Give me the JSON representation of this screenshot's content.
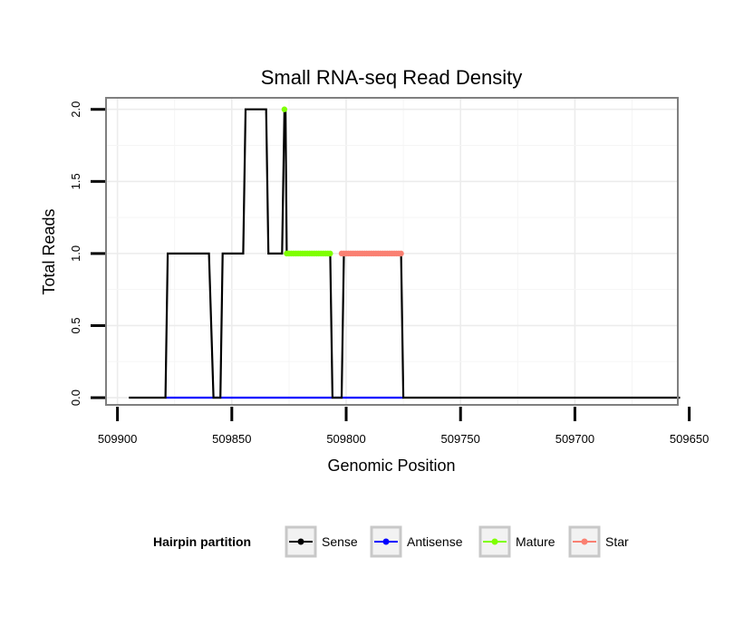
{
  "chart_data": {
    "type": "line",
    "title": "Small RNA-seq Read Density",
    "xlabel": "Genomic Position",
    "ylabel": "Total Reads",
    "x_reversed": true,
    "xlim": [
      509095,
      509345
    ],
    "ylim": [
      -0.05,
      2.08
    ],
    "x_ticks": [
      509100,
      509150,
      509200,
      509250,
      509300,
      509350
    ],
    "x_tick_labels": [
      "509900",
      "509850",
      "509800",
      "509750",
      "509700",
      "509650"
    ],
    "y_ticks": [
      0,
      0.5,
      1,
      1.5,
      2
    ],
    "y_tick_labels": [
      "0.0",
      "0.5",
      "1.0",
      "1.5",
      "2.0"
    ],
    "grid": true,
    "legend": {
      "title": "Hairpin partition",
      "position": "bottom",
      "entries": [
        {
          "name": "Sense",
          "color": "#000000"
        },
        {
          "name": "Antisense",
          "color": "#0000ff"
        },
        {
          "name": "Mature",
          "color": "#7fff00"
        },
        {
          "name": "Star",
          "color": "#fa8072"
        }
      ]
    },
    "series": [
      {
        "name": "Sense",
        "color": "#000000",
        "style": "line",
        "x": [
          509105,
          509121,
          509122,
          509140,
          509142,
          509145,
          509146,
          509155,
          509156,
          509165,
          509166,
          509172,
          509173,
          509173.5,
          509174,
          509193,
          509194,
          509198,
          509199,
          509224,
          509225,
          509346
        ],
        "y": [
          0,
          0,
          1,
          1,
          0,
          0,
          1,
          1,
          2,
          2,
          1,
          1,
          2,
          2,
          1,
          1,
          0,
          0,
          1,
          1,
          0,
          0
        ]
      },
      {
        "name": "Antisense",
        "color": "#0000ff",
        "style": "line",
        "x": [
          509121,
          509225
        ],
        "y": [
          0,
          0
        ]
      },
      {
        "name": "Mature",
        "color": "#7fff00",
        "style": "points",
        "x": [
          509173,
          509174,
          509175,
          509176,
          509177,
          509178,
          509179,
          509180,
          509181,
          509182,
          509183,
          509184,
          509185,
          509186,
          509187,
          509188,
          509189,
          509190,
          509191,
          509192,
          509193
        ],
        "y": [
          2,
          1,
          1,
          1,
          1,
          1,
          1,
          1,
          1,
          1,
          1,
          1,
          1,
          1,
          1,
          1,
          1,
          1,
          1,
          1,
          1
        ]
      },
      {
        "name": "Star",
        "color": "#fa8072",
        "style": "points",
        "x": [
          509198,
          509199,
          509200,
          509201,
          509202,
          509203,
          509204,
          509205,
          509206,
          509207,
          509208,
          509209,
          509210,
          509211,
          509212,
          509213,
          509214,
          509215,
          509216,
          509217,
          509218,
          509219,
          509220,
          509221,
          509222,
          509223,
          509224
        ],
        "y": [
          1,
          1,
          1,
          1,
          1,
          1,
          1,
          1,
          1,
          1,
          1,
          1,
          1,
          1,
          1,
          1,
          1,
          1,
          1,
          1,
          1,
          1,
          1,
          1,
          1,
          1,
          1
        ]
      }
    ]
  }
}
